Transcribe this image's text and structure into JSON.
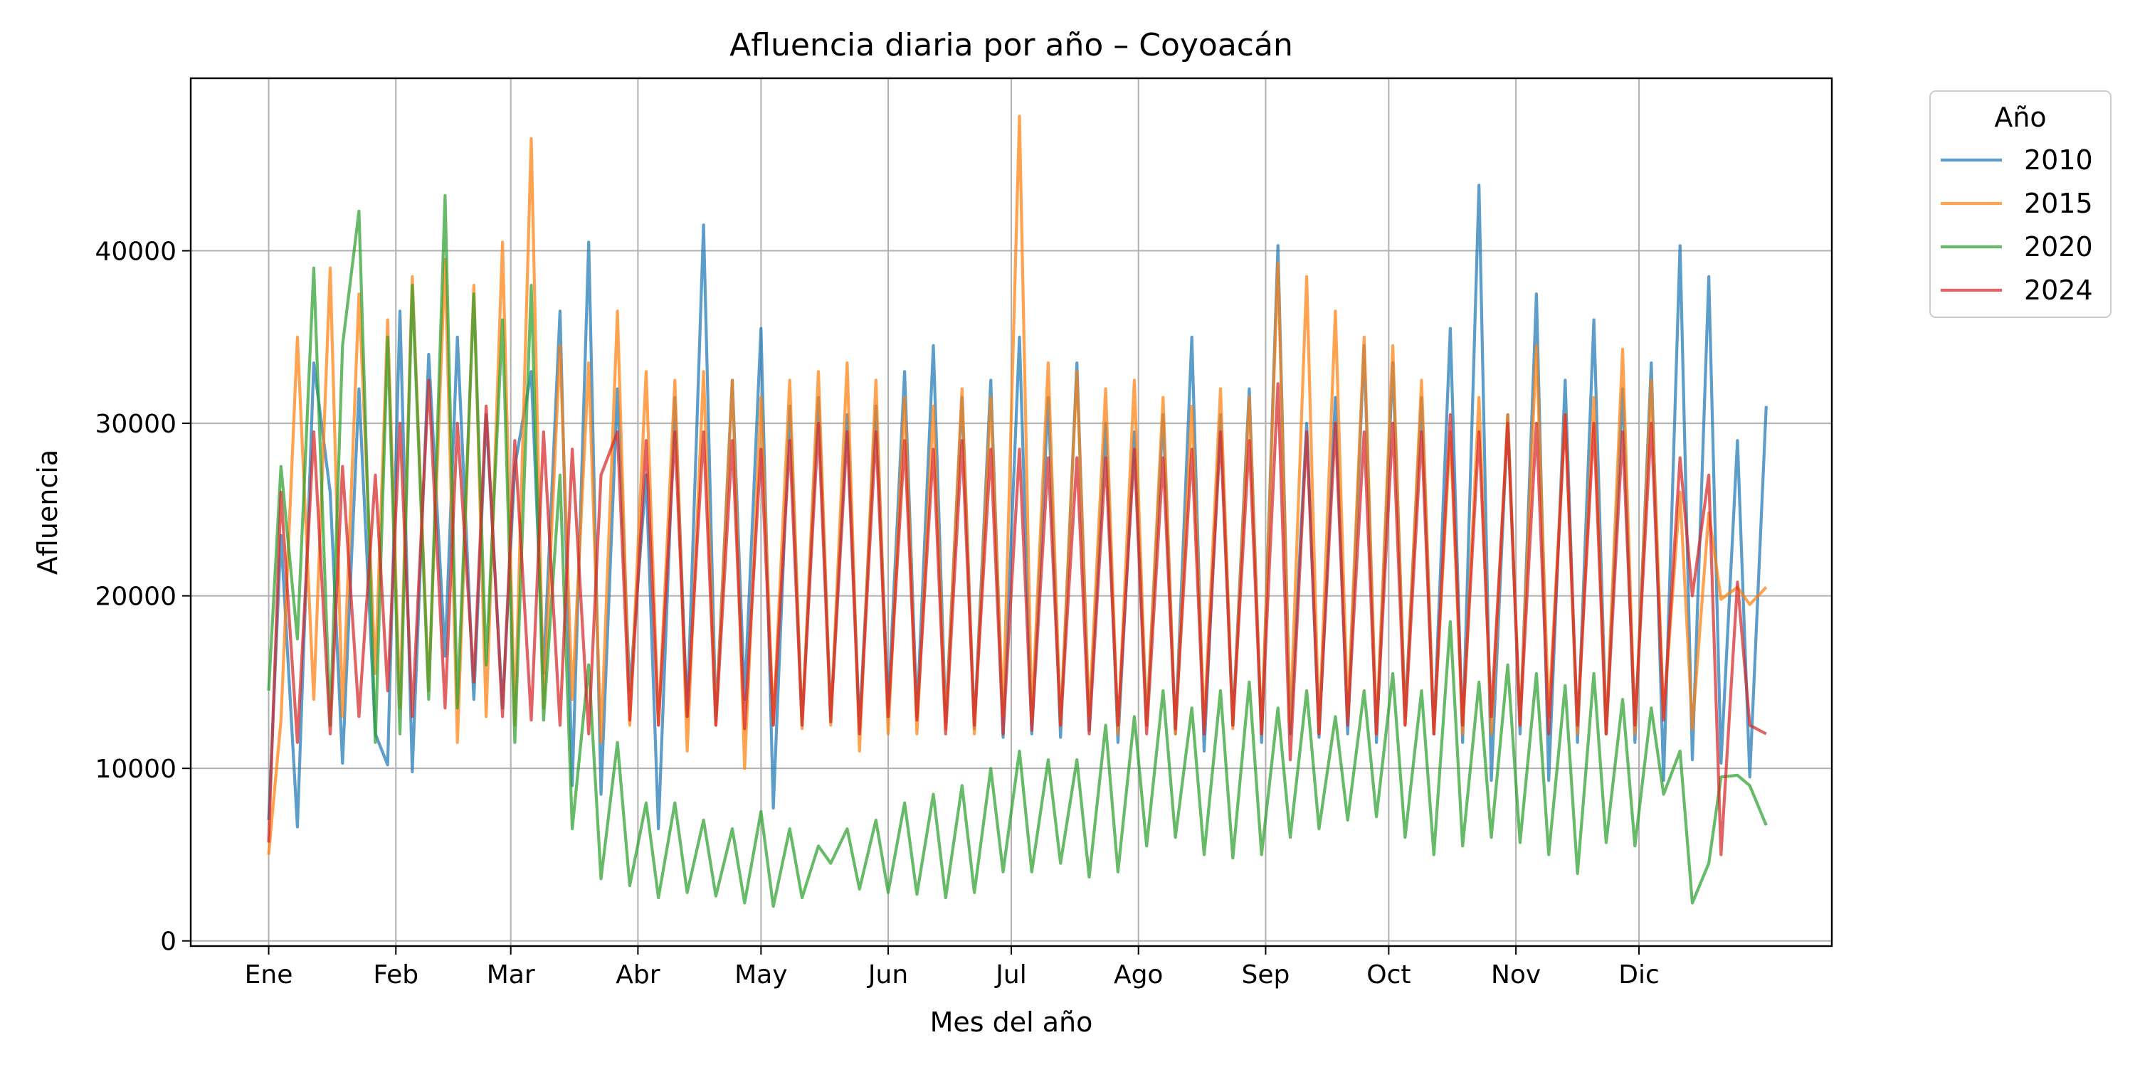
{
  "chart_data": {
    "type": "line",
    "title": "Afluencia diaria por año – Coyoacán",
    "xlabel": "Mes del año",
    "ylabel": "Afluencia",
    "x_unit": "día del año",
    "xlim": [
      -18,
      382
    ],
    "ylim": [
      -300,
      50000
    ],
    "y_ticks": [
      0,
      10000,
      20000,
      30000,
      40000
    ],
    "month_ticks": [
      {
        "label": "Ene",
        "day": 1
      },
      {
        "label": "Feb",
        "day": 32
      },
      {
        "label": "Mar",
        "day": 60
      },
      {
        "label": "Abr",
        "day": 91
      },
      {
        "label": "May",
        "day": 121
      },
      {
        "label": "Jun",
        "day": 152
      },
      {
        "label": "Jul",
        "day": 182
      },
      {
        "label": "Ago",
        "day": 213
      },
      {
        "label": "Sep",
        "day": 244
      },
      {
        "label": "Oct",
        "day": 274
      },
      {
        "label": "Nov",
        "day": 305
      },
      {
        "label": "Dic",
        "day": 335
      }
    ],
    "grid": true,
    "legend": {
      "title": "Año",
      "position": "outside-top-right"
    },
    "series": [
      {
        "name": "2010",
        "color": "#1f77b4",
        "x": [
          1,
          4,
          8,
          12,
          16,
          19,
          23,
          27,
          30,
          33,
          36,
          40,
          44,
          47,
          51,
          54,
          58,
          61,
          65,
          68,
          72,
          75,
          79,
          82,
          86,
          89,
          93,
          96,
          100,
          103,
          107,
          110,
          114,
          117,
          121,
          124,
          128,
          131,
          135,
          138,
          142,
          145,
          149,
          152,
          156,
          159,
          163,
          166,
          170,
          173,
          177,
          180,
          184,
          187,
          191,
          194,
          198,
          201,
          205,
          208,
          212,
          215,
          219,
          222,
          226,
          229,
          233,
          236,
          240,
          243,
          247,
          250,
          254,
          257,
          261,
          264,
          268,
          271,
          275,
          278,
          282,
          285,
          289,
          292,
          296,
          299,
          303,
          306,
          310,
          313,
          317,
          320,
          324,
          327,
          331,
          334,
          338,
          341,
          345,
          348,
          352,
          355,
          359,
          362,
          366
        ],
        "y": [
          7000,
          23500,
          6600,
          33500,
          26000,
          10300,
          32000,
          12000,
          10200,
          36500,
          9800,
          34000,
          16500,
          35000,
          14000,
          30500,
          13500,
          27500,
          33000,
          15500,
          36500,
          9000,
          40500,
          8500,
          32000,
          14500,
          27000,
          6500,
          31500,
          13000,
          41500,
          12800,
          32500,
          14000,
          35500,
          7700,
          31000,
          12500,
          31500,
          13000,
          30500,
          12300,
          31000,
          13500,
          33000,
          13000,
          34500,
          12700,
          31500,
          12300,
          32500,
          11800,
          35000,
          12000,
          31500,
          11800,
          33500,
          12200,
          30000,
          11500,
          29500,
          12500,
          30500,
          12000,
          35000,
          11000,
          30500,
          12500,
          32000,
          11500,
          40300,
          12000,
          30000,
          11800,
          31500,
          12000,
          34500,
          11500,
          33500,
          13000,
          31500,
          12000,
          35500,
          11500,
          43800,
          9300,
          30500,
          12000,
          37500,
          9300,
          32500,
          11500,
          36000,
          12000,
          32000,
          11500,
          33500,
          9300,
          40300,
          10500,
          38500,
          10300,
          29000,
          9500,
          31000
        ]
      },
      {
        "name": "2015",
        "color": "#ff7f0e",
        "x": [
          1,
          4,
          8,
          12,
          16,
          19,
          23,
          27,
          30,
          33,
          36,
          40,
          44,
          47,
          51,
          54,
          58,
          61,
          65,
          68,
          72,
          75,
          79,
          82,
          86,
          89,
          93,
          96,
          100,
          103,
          107,
          110,
          114,
          117,
          121,
          124,
          128,
          131,
          135,
          138,
          142,
          145,
          149,
          152,
          156,
          159,
          163,
          166,
          170,
          173,
          177,
          180,
          184,
          187,
          191,
          194,
          198,
          201,
          205,
          208,
          212,
          215,
          219,
          222,
          226,
          229,
          233,
          236,
          240,
          243,
          247,
          250,
          254,
          257,
          261,
          264,
          268,
          271,
          275,
          278,
          282,
          285,
          289,
          292,
          296,
          299,
          303,
          306,
          310,
          313,
          317,
          320,
          324,
          327,
          331,
          334,
          338,
          341,
          345,
          348,
          352,
          355,
          359,
          362,
          366
        ],
        "y": [
          5000,
          12800,
          35000,
          14000,
          39000,
          13000,
          37500,
          15500,
          36000,
          13500,
          38500,
          14500,
          39500,
          11500,
          38000,
          13000,
          40500,
          12500,
          46500,
          13500,
          34500,
          14000,
          33500,
          11500,
          36500,
          12500,
          33000,
          12500,
          32500,
          11000,
          33000,
          12500,
          32500,
          10000,
          31500,
          12500,
          32500,
          12300,
          33000,
          12500,
          33500,
          11000,
          32500,
          12000,
          31500,
          12000,
          31000,
          12300,
          32000,
          12000,
          31500,
          13000,
          47800,
          12800,
          33500,
          12500,
          33000,
          13000,
          32000,
          12000,
          32500,
          12500,
          31500,
          12000,
          31000,
          12500,
          32000,
          12300,
          31500,
          12000,
          39300,
          12500,
          38500,
          12000,
          36500,
          13000,
          35000,
          12000,
          34500,
          12500,
          32500,
          12000,
          29500,
          12000,
          31500,
          12000,
          30500,
          12500,
          34500,
          13000,
          30500,
          12000,
          31500,
          12000,
          34300,
          12000,
          32500,
          13000,
          26000,
          12300,
          24800,
          19800,
          20500,
          19500,
          20500
        ]
      },
      {
        "name": "2020",
        "color": "#2ca02c",
        "x": [
          1,
          4,
          8,
          12,
          16,
          19,
          23,
          27,
          30,
          33,
          36,
          40,
          44,
          47,
          51,
          54,
          58,
          61,
          65,
          68,
          72,
          75,
          79,
          82,
          86,
          89,
          93,
          96,
          100,
          103,
          107,
          110,
          114,
          117,
          121,
          124,
          128,
          131,
          135,
          138,
          142,
          145,
          149,
          152,
          156,
          159,
          163,
          166,
          170,
          173,
          177,
          180,
          184,
          187,
          191,
          194,
          198,
          201,
          205,
          208,
          212,
          215,
          219,
          222,
          226,
          229,
          233,
          236,
          240,
          243,
          247,
          250,
          254,
          257,
          261,
          264,
          268,
          271,
          275,
          278,
          282,
          285,
          289,
          292,
          296,
          299,
          303,
          306,
          310,
          313,
          317,
          320,
          324,
          327,
          331,
          334,
          338,
          341,
          345,
          348,
          352,
          355,
          359,
          362,
          366
        ],
        "y": [
          14500,
          27500,
          17500,
          39000,
          12500,
          34500,
          42300,
          11500,
          35000,
          12000,
          38000,
          14000,
          43200,
          13500,
          37500,
          16000,
          36000,
          11500,
          38000,
          12800,
          27000,
          6500,
          16000,
          3600,
          11500,
          3200,
          8000,
          2500,
          8000,
          2800,
          7000,
          2600,
          6500,
          2200,
          7500,
          2000,
          6500,
          2500,
          5500,
          4500,
          6500,
          3000,
          7000,
          2800,
          8000,
          2700,
          8500,
          2500,
          9000,
          2800,
          10000,
          4000,
          11000,
          4000,
          10500,
          4500,
          10500,
          3700,
          12500,
          4000,
          13000,
          5500,
          14500,
          6000,
          13500,
          5000,
          14500,
          4800,
          15000,
          5000,
          13500,
          6000,
          14500,
          6500,
          13000,
          7000,
          14500,
          7200,
          15500,
          6000,
          14500,
          5000,
          18500,
          5500,
          15000,
          6000,
          16000,
          5700,
          15500,
          5000,
          14800,
          3900,
          15500,
          5700,
          14000,
          5500,
          13500,
          8500,
          11000,
          2200,
          4500,
          9500,
          9600,
          9000,
          6700
        ]
      },
      {
        "name": "2024",
        "color": "#d62728",
        "x": [
          1,
          4,
          8,
          12,
          16,
          19,
          23,
          27,
          30,
          33,
          36,
          40,
          44,
          47,
          51,
          54,
          58,
          61,
          65,
          68,
          72,
          75,
          79,
          82,
          86,
          89,
          93,
          96,
          100,
          103,
          107,
          110,
          114,
          117,
          121,
          124,
          128,
          131,
          135,
          138,
          142,
          145,
          149,
          152,
          156,
          159,
          163,
          166,
          170,
          173,
          177,
          180,
          184,
          187,
          191,
          194,
          198,
          201,
          205,
          208,
          212,
          215,
          219,
          222,
          226,
          229,
          233,
          236,
          240,
          243,
          247,
          250,
          254,
          257,
          261,
          264,
          268,
          271,
          275,
          278,
          282,
          285,
          289,
          292,
          296,
          299,
          303,
          306,
          310,
          313,
          317,
          320,
          324,
          327,
          331,
          334,
          338,
          341,
          345,
          348,
          352,
          355,
          359,
          362,
          366
        ],
        "y": [
          5700,
          26000,
          11500,
          29500,
          12000,
          27500,
          13000,
          27000,
          14500,
          30000,
          13000,
          32500,
          13500,
          30000,
          15000,
          31000,
          13000,
          29000,
          12800,
          29500,
          12500,
          28500,
          12000,
          27000,
          29500,
          12800,
          29000,
          12500,
          29500,
          13000,
          29500,
          12500,
          29000,
          12300,
          28500,
          12500,
          29000,
          12500,
          30000,
          12700,
          29500,
          12000,
          29500,
          13000,
          29000,
          12800,
          28500,
          12000,
          29000,
          12500,
          28500,
          12000,
          28500,
          12200,
          28000,
          12500,
          28000,
          12000,
          28000,
          12500,
          28500,
          12000,
          28000,
          12300,
          28500,
          12000,
          29500,
          12500,
          29000,
          12000,
          32300,
          10500,
          29500,
          12000,
          30000,
          12500,
          29500,
          12000,
          30000,
          12500,
          29500,
          12000,
          30500,
          12500,
          29500,
          13000,
          30000,
          12500,
          30000,
          12000,
          30500,
          12500,
          30000,
          12000,
          29500,
          12500,
          30000,
          12800,
          28000,
          20000,
          27000,
          5000,
          20800,
          12500,
          12000
        ]
      }
    ]
  }
}
